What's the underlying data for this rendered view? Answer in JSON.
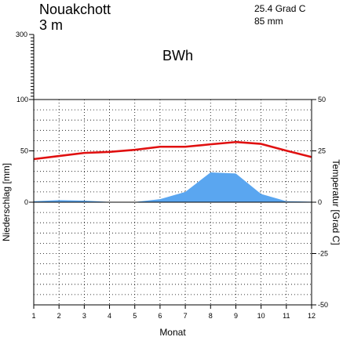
{
  "header": {
    "station": "Nouakchott",
    "elevation": "3 m",
    "mean_temp": "25.4 Grad C",
    "annual_precip": "85 mm",
    "climate_class": "BWh"
  },
  "chart_data": {
    "type": "line",
    "title": "Nouakchott",
    "xlabel": "Monat",
    "ylabel_left": "Niederschlag [mm]",
    "ylabel_right": "Temperatur [Grad C]",
    "x": [
      1,
      2,
      3,
      4,
      5,
      6,
      7,
      8,
      9,
      10,
      11,
      12
    ],
    "x_tick_labels": [
      "1",
      "2",
      "3",
      "4",
      "5",
      "6",
      "7",
      "8",
      "9",
      "10",
      "11",
      "12"
    ],
    "precip_axis": {
      "range": [
        0,
        100
      ],
      "ticks": [
        "0",
        "50",
        "100"
      ],
      "upper_range": [
        100,
        300
      ],
      "upper_ticks": [
        "300"
      ]
    },
    "temp_axis": {
      "range": [
        -50,
        50
      ],
      "ticks": [
        "50",
        "25",
        "0",
        "-25",
        "-50"
      ]
    },
    "grid": true,
    "series": [
      {
        "name": "Niederschlag",
        "kind": "area",
        "color": "#5aa6f0",
        "values": [
          1,
          2,
          1.5,
          0.3,
          0.2,
          3,
          10,
          29,
          28,
          8,
          1,
          0.5
        ]
      },
      {
        "name": "Temperatur",
        "kind": "line",
        "color": "#e01010",
        "values": [
          21,
          22.5,
          24,
          24.5,
          25.5,
          27,
          27,
          28.2,
          29.3,
          28.4,
          25.1,
          22
        ]
      }
    ]
  }
}
